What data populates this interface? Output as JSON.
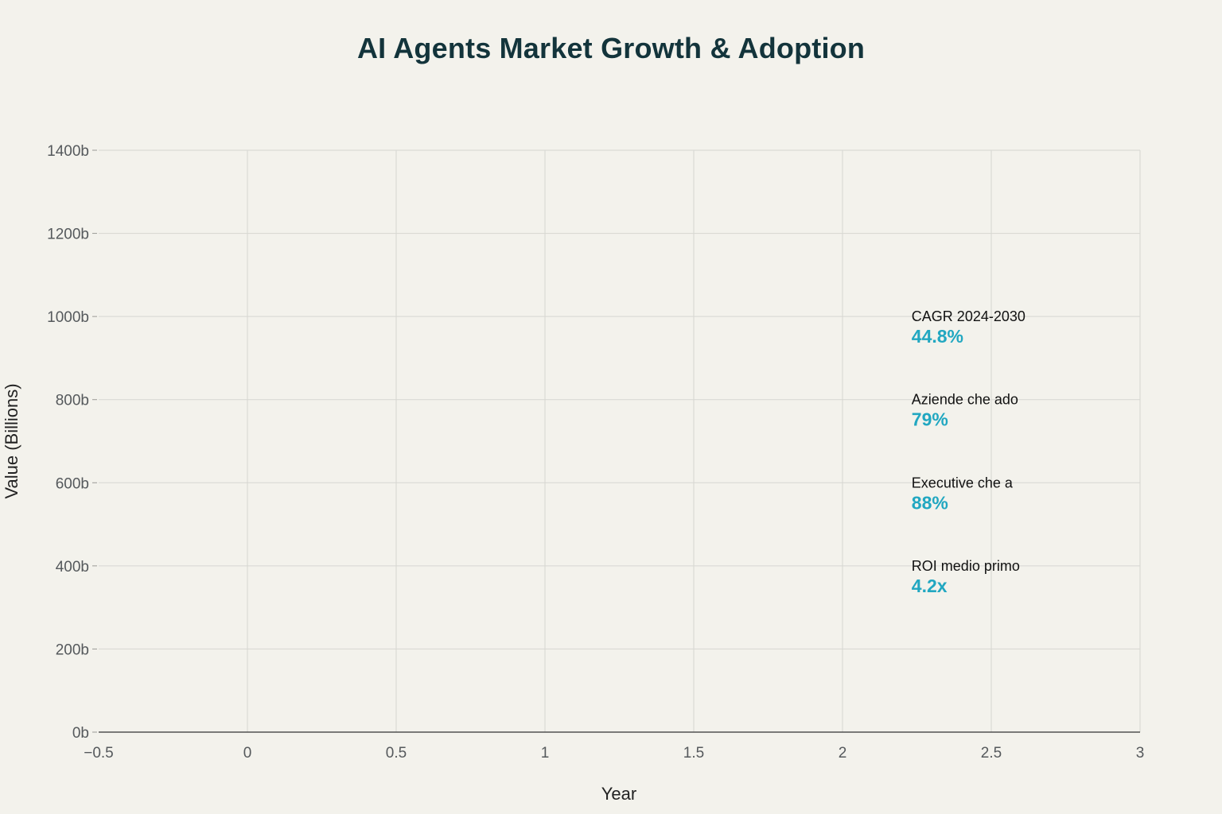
{
  "chart_data": {
    "type": "scatter",
    "title": "AI Agents Market Growth & Adoption",
    "xlabel": "Year",
    "ylabel": "Value (Billions)",
    "xlim": [
      -0.5,
      3
    ],
    "ylim": [
      0,
      1400
    ],
    "x_ticks": [
      -0.5,
      0,
      0.5,
      1,
      1.5,
      2,
      2.5,
      3
    ],
    "x_tick_labels": [
      "−0.5",
      "0",
      "0.5",
      "1",
      "1.5",
      "2",
      "2.5",
      "3"
    ],
    "y_ticks": [
      0,
      200,
      400,
      600,
      800,
      1000,
      1200,
      1400
    ],
    "y_tick_labels": [
      "0b",
      "200b",
      "400b",
      "600b",
      "800b",
      "1000b",
      "1200b",
      "1400b"
    ],
    "grid": true,
    "series": [],
    "annotations": [
      {
        "label": "CAGR 2024-2030",
        "value": "44.8%",
        "x": 2.2,
        "y": 1000
      },
      {
        "label": "Aziende che ado",
        "value": "79%",
        "x": 2.2,
        "y": 800
      },
      {
        "label": "Executive che a",
        "value": "88%",
        "x": 2.2,
        "y": 600
      },
      {
        "label": "ROI medio primo",
        "value": "4.2x",
        "x": 2.2,
        "y": 400
      }
    ],
    "colors": {
      "background": "#f3f2ec",
      "grid": "#d6d6d1",
      "axis": "#333333",
      "accent": "#21a7c1",
      "title": "#13343b"
    }
  }
}
